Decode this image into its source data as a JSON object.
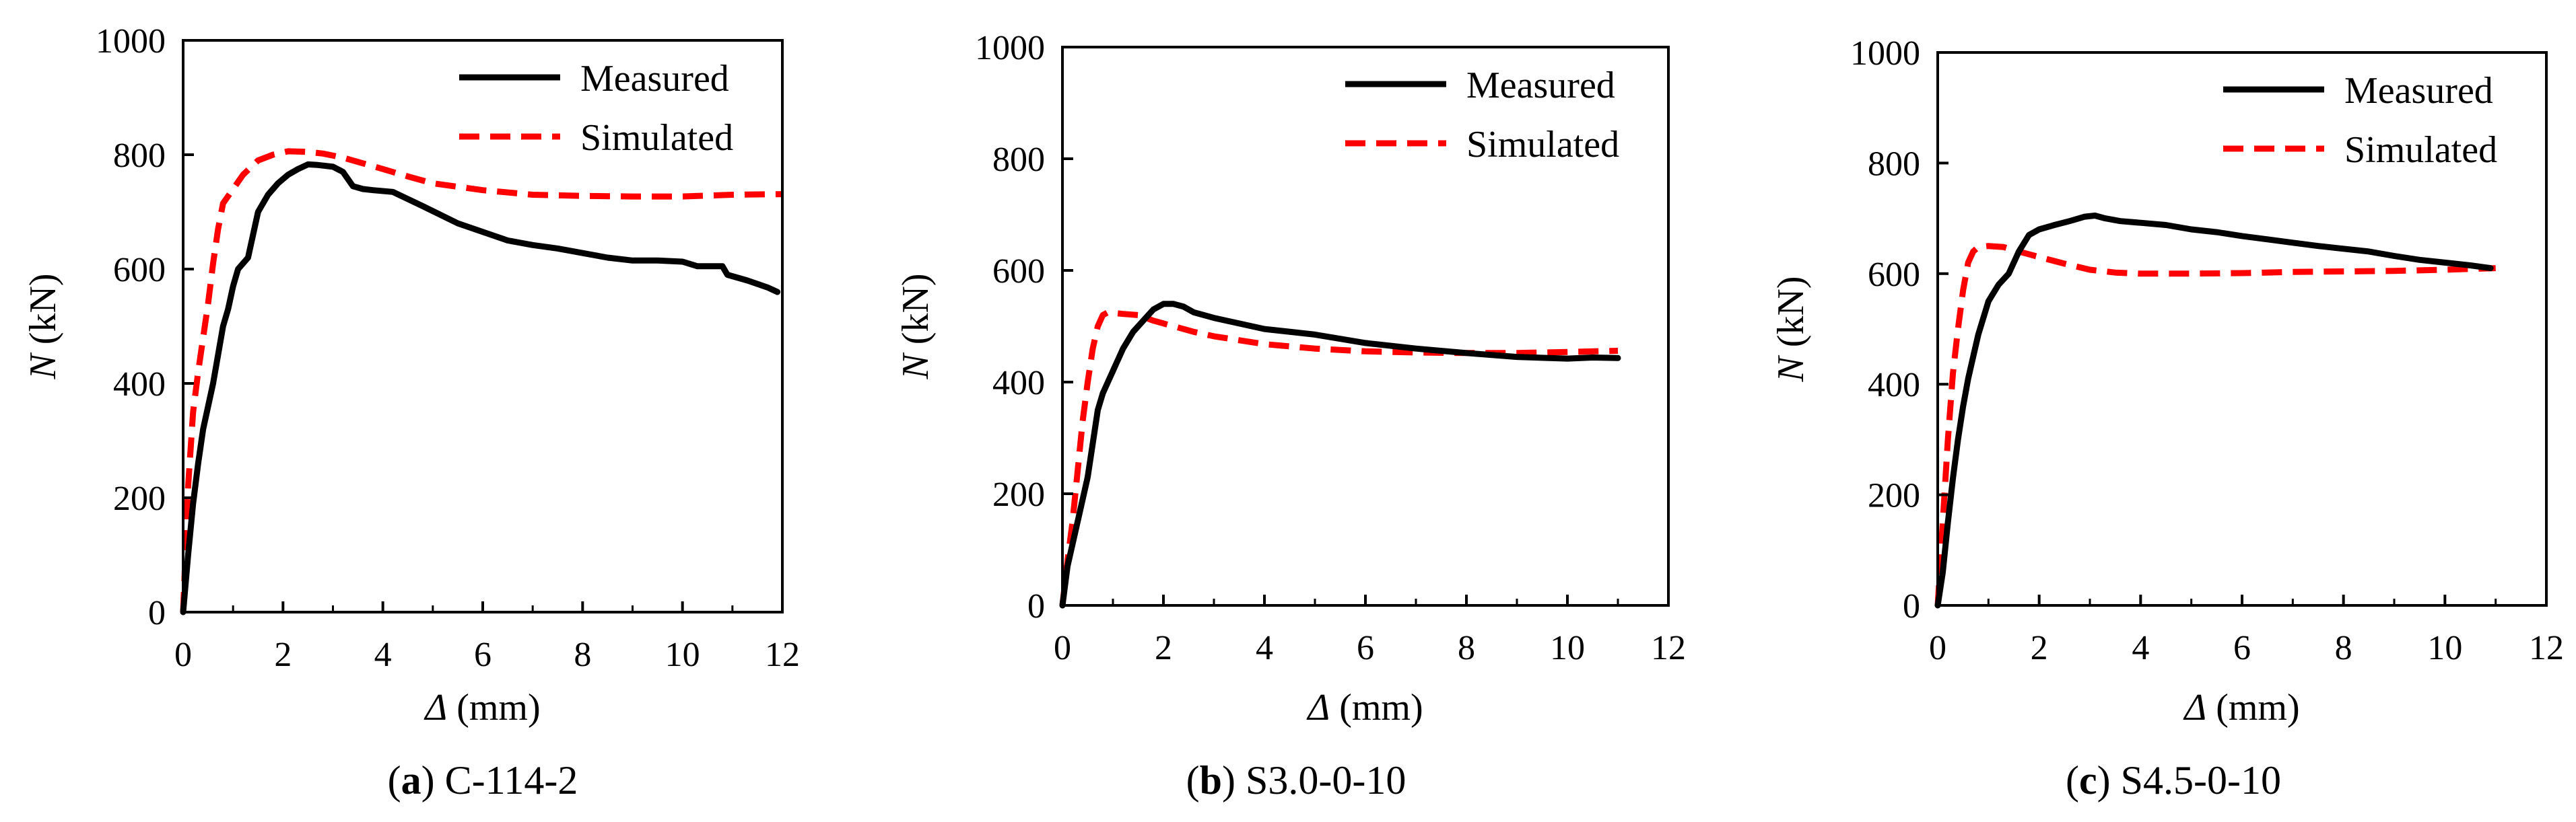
{
  "figure": {
    "colors": {
      "measured": "#000000",
      "simulated": "#ff0000",
      "axis": "#000000"
    }
  },
  "chart_data": [
    {
      "id": "a",
      "type": "line",
      "caption_letter": "a",
      "caption_text": "C-114-2",
      "xlabel_symbol": "Δ",
      "xlabel_unit": "(mm)",
      "ylabel_symbol": "N",
      "ylabel_unit": "(kN)",
      "xlim": [
        0,
        12
      ],
      "ylim": [
        0,
        1000
      ],
      "xticks": [
        "0",
        "2",
        "4",
        "6",
        "8",
        "10",
        "12"
      ],
      "yticks": [
        "0",
        "200",
        "400",
        "600",
        "800",
        "1000"
      ],
      "legend_position": "top-right",
      "legend": [
        "Measured",
        "Simulated"
      ],
      "series": [
        {
          "name": "Measured",
          "x": [
            0,
            0.1,
            0.2,
            0.3,
            0.4,
            0.5,
            0.6,
            0.7,
            0.8,
            0.9,
            1.0,
            1.1,
            1.3,
            1.5,
            1.7,
            1.9,
            2.1,
            2.3,
            2.5,
            2.7,
            3.0,
            3.2,
            3.4,
            3.6,
            3.8,
            4.2,
            4.8,
            5.5,
            6.0,
            6.5,
            7.0,
            7.5,
            8.0,
            8.5,
            9.0,
            9.5,
            10.0,
            10.3,
            10.6,
            10.8,
            10.9,
            11.3,
            11.7,
            11.9
          ],
          "values": [
            0,
            100,
            190,
            260,
            320,
            360,
            400,
            450,
            500,
            530,
            570,
            600,
            620,
            700,
            730,
            750,
            765,
            775,
            783,
            782,
            779,
            770,
            745,
            740,
            738,
            735,
            710,
            680,
            665,
            650,
            642,
            636,
            628,
            620,
            615,
            615,
            613,
            605,
            605,
            605,
            590,
            580,
            568,
            560
          ]
        },
        {
          "name": "Simulated",
          "x": [
            0,
            0.1,
            0.2,
            0.3,
            0.4,
            0.5,
            0.6,
            0.7,
            0.8,
            1.0,
            1.2,
            1.5,
            1.8,
            2.1,
            2.5,
            2.8,
            3.2,
            3.6,
            4.0,
            4.5,
            5.0,
            6.0,
            7.0,
            8.0,
            9.0,
            10.0,
            11.0,
            12.0
          ],
          "values": [
            0,
            220,
            350,
            420,
            480,
            540,
            610,
            670,
            715,
            740,
            765,
            790,
            800,
            806,
            805,
            802,
            795,
            785,
            775,
            762,
            750,
            738,
            730,
            728,
            727,
            727,
            730,
            731
          ]
        }
      ]
    },
    {
      "id": "b",
      "type": "line",
      "caption_letter": "b",
      "caption_text": "S3.0-0-10",
      "xlabel_symbol": "Δ",
      "xlabel_unit": "(mm)",
      "ylabel_symbol": "N",
      "ylabel_unit": "(kN)",
      "xlim": [
        0,
        12
      ],
      "ylim": [
        0,
        1000
      ],
      "xticks": [
        "0",
        "2",
        "4",
        "6",
        "8",
        "10",
        "12"
      ],
      "yticks": [
        "0",
        "200",
        "400",
        "600",
        "800",
        "1000"
      ],
      "legend_position": "top-right",
      "legend": [
        "Measured",
        "Simulated"
      ],
      "series": [
        {
          "name": "Measured",
          "x": [
            0,
            0.1,
            0.2,
            0.35,
            0.5,
            0.6,
            0.7,
            0.8,
            1.0,
            1.2,
            1.4,
            1.6,
            1.8,
            2.0,
            2.2,
            2.4,
            2.6,
            3.0,
            3.5,
            4.0,
            5.0,
            6.0,
            7.0,
            8.0,
            9.0,
            10.0,
            10.5,
            11.0
          ],
          "values": [
            0,
            70,
            110,
            170,
            230,
            290,
            350,
            380,
            420,
            460,
            490,
            510,
            530,
            540,
            540,
            535,
            525,
            515,
            505,
            495,
            485,
            470,
            460,
            452,
            445,
            442,
            444,
            443
          ]
        },
        {
          "name": "Simulated",
          "x": [
            0,
            0.1,
            0.2,
            0.3,
            0.4,
            0.5,
            0.6,
            0.7,
            0.8,
            0.9,
            1.0,
            1.2,
            1.5,
            1.8,
            2.2,
            2.6,
            3.0,
            3.5,
            4.0,
            5.0,
            6.0,
            7.0,
            8.0,
            9.0,
            10.0,
            11.0
          ],
          "values": [
            0,
            80,
            150,
            240,
            330,
            400,
            460,
            500,
            520,
            525,
            524,
            522,
            520,
            510,
            500,
            490,
            482,
            475,
            468,
            460,
            455,
            453,
            452,
            452,
            454,
            456
          ]
        }
      ]
    },
    {
      "id": "c",
      "type": "line",
      "caption_letter": "c",
      "caption_text": "S4.5-0-10",
      "xlabel_symbol": "Δ",
      "xlabel_unit": "(mm)",
      "ylabel_symbol": "N",
      "ylabel_unit": "(kN)",
      "xlim": [
        0,
        12
      ],
      "ylim": [
        0,
        1000
      ],
      "xticks": [
        "0",
        "2",
        "4",
        "6",
        "8",
        "10",
        "12"
      ],
      "yticks": [
        "0",
        "200",
        "400",
        "600",
        "800",
        "1000"
      ],
      "legend_position": "top-right",
      "legend": [
        "Measured",
        "Simulated"
      ],
      "series": [
        {
          "name": "Measured",
          "x": [
            0,
            0.1,
            0.2,
            0.3,
            0.4,
            0.5,
            0.6,
            0.7,
            0.8,
            0.9,
            1.0,
            1.2,
            1.4,
            1.6,
            1.8,
            2.0,
            2.3,
            2.6,
            2.9,
            3.1,
            3.3,
            3.6,
            4.0,
            4.5,
            5.0,
            5.5,
            6.0,
            6.5,
            7.0,
            7.5,
            8.0,
            8.5,
            9.0,
            9.5,
            10.0,
            10.5,
            10.9
          ],
          "values": [
            0,
            60,
            150,
            230,
            300,
            360,
            410,
            450,
            490,
            520,
            550,
            580,
            600,
            640,
            670,
            680,
            688,
            695,
            703,
            705,
            700,
            695,
            692,
            688,
            680,
            675,
            668,
            662,
            656,
            650,
            645,
            640,
            632,
            625,
            620,
            615,
            610
          ]
        },
        {
          "name": "Simulated",
          "x": [
            0,
            0.1,
            0.2,
            0.3,
            0.4,
            0.5,
            0.6,
            0.7,
            0.8,
            1.0,
            1.3,
            1.6,
            2.0,
            2.5,
            3.0,
            3.5,
            4.0,
            5.0,
            6.0,
            7.0,
            8.0,
            9.0,
            10.0,
            11.0
          ],
          "values": [
            0,
            150,
            300,
            420,
            500,
            570,
            620,
            640,
            648,
            650,
            648,
            640,
            630,
            618,
            607,
            602,
            600,
            600,
            601,
            603,
            604,
            605,
            607,
            610
          ]
        }
      ]
    }
  ]
}
